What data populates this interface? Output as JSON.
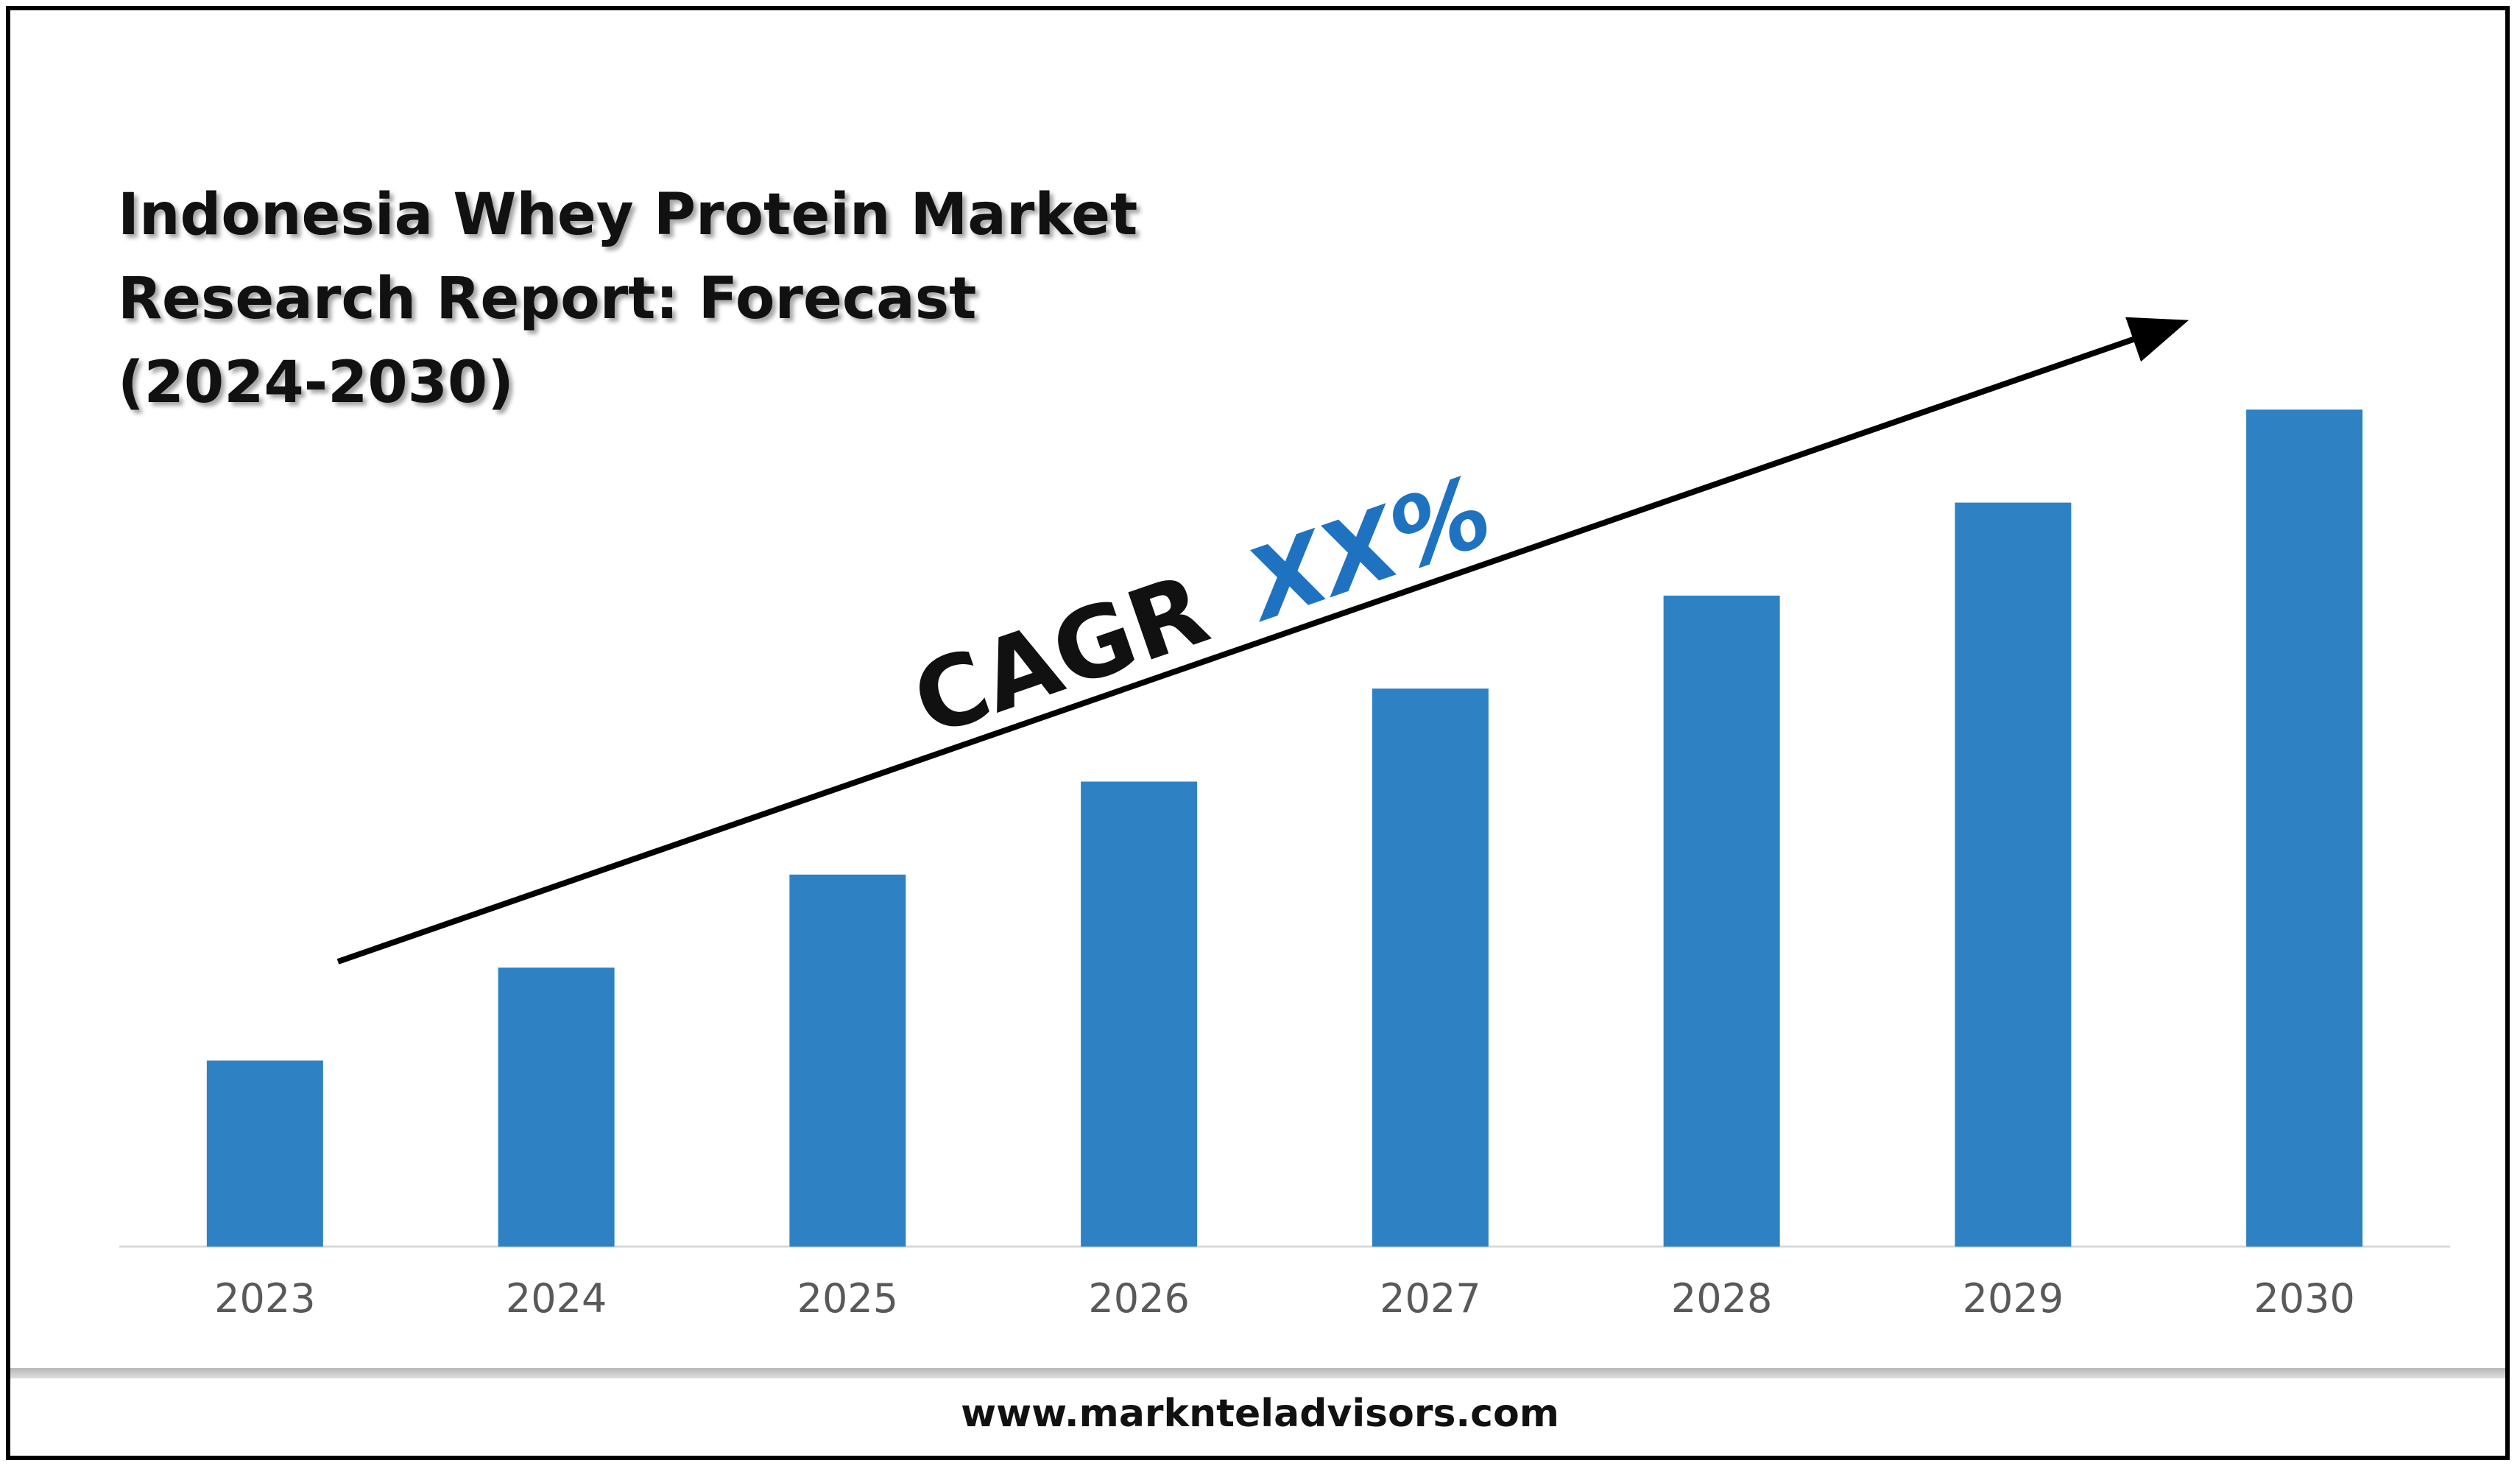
{
  "colors": {
    "bar": "#2E82C4",
    "cagr_accent": "#1F72C0",
    "text": "#111111",
    "axis_text": "#595959"
  },
  "title_lines": [
    "Indonesia Whey Protein Market",
    "Research Report: Forecast",
    "(2024-2030)"
  ],
  "cagr": {
    "label": "CAGR",
    "value": "XX%"
  },
  "footer": {
    "website": "www.marknteladvisors.com"
  },
  "chart_data": {
    "type": "bar",
    "title": "Indonesia Whey Protein Market Research Report: Forecast (2024-2030)",
    "categories": [
      "2023",
      "2024",
      "2025",
      "2026",
      "2027",
      "2028",
      "2029",
      "2030"
    ],
    "values": [
      1,
      1.5,
      2,
      2.5,
      3,
      3.5,
      4,
      4.5
    ],
    "ylim": [
      0,
      5
    ],
    "xlabel": "",
    "ylabel": "",
    "grid": false,
    "annotations": [
      "CAGR XX%"
    ]
  }
}
